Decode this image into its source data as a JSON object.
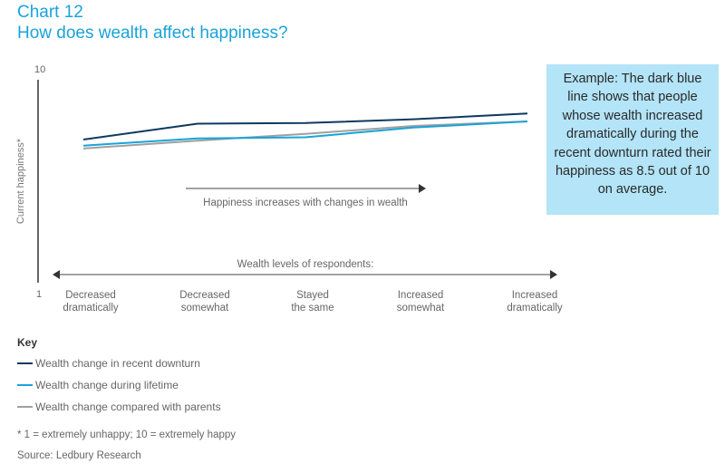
{
  "header": {
    "chart_number": "Chart 12",
    "title": "How does wealth affect happiness?"
  },
  "chart_data": {
    "type": "line",
    "ylabel": "Current happiness*",
    "ylim": [
      1,
      10
    ],
    "y_tick_labels": [
      "10",
      "1"
    ],
    "xlabel": "Wealth levels of respondents:",
    "categories": [
      "Decreased dramatically",
      "Decreased somewhat",
      "Stayed the same",
      "Increased somewhat",
      "Increased dramatically"
    ],
    "category_lines": [
      [
        "Decreased",
        "dramatically"
      ],
      [
        "Decreased",
        "somewhat"
      ],
      [
        "Stayed",
        "the same"
      ],
      [
        "Increased",
        "somewhat"
      ],
      [
        "Increased",
        "dramatically"
      ]
    ],
    "annotation": "Happiness increases with changes in wealth",
    "series": [
      {
        "name": "Wealth change in recent downturn",
        "color": "#0e3a5f",
        "values": [
          7.35,
          8.05,
          8.08,
          8.25,
          8.5
        ]
      },
      {
        "name": "Wealth change during lifetime",
        "color": "#1aa3d9",
        "values": [
          7.08,
          7.4,
          7.45,
          7.88,
          8.15
        ]
      },
      {
        "name": "Wealth change compared with parents",
        "color": "#a0a0a0",
        "values": [
          6.95,
          7.3,
          7.6,
          7.95,
          8.15
        ]
      }
    ],
    "grid": false
  },
  "callout": {
    "text": "Example: The dark blue line shows that people whose wealth increased dramatically during the recent downturn rated their happiness as 8.5 out of 10 on average."
  },
  "key": {
    "title": "Key"
  },
  "footnote": "* 1 = extremely unhappy; 10 = extremely happy",
  "source": "Source: Ledbury Research"
}
